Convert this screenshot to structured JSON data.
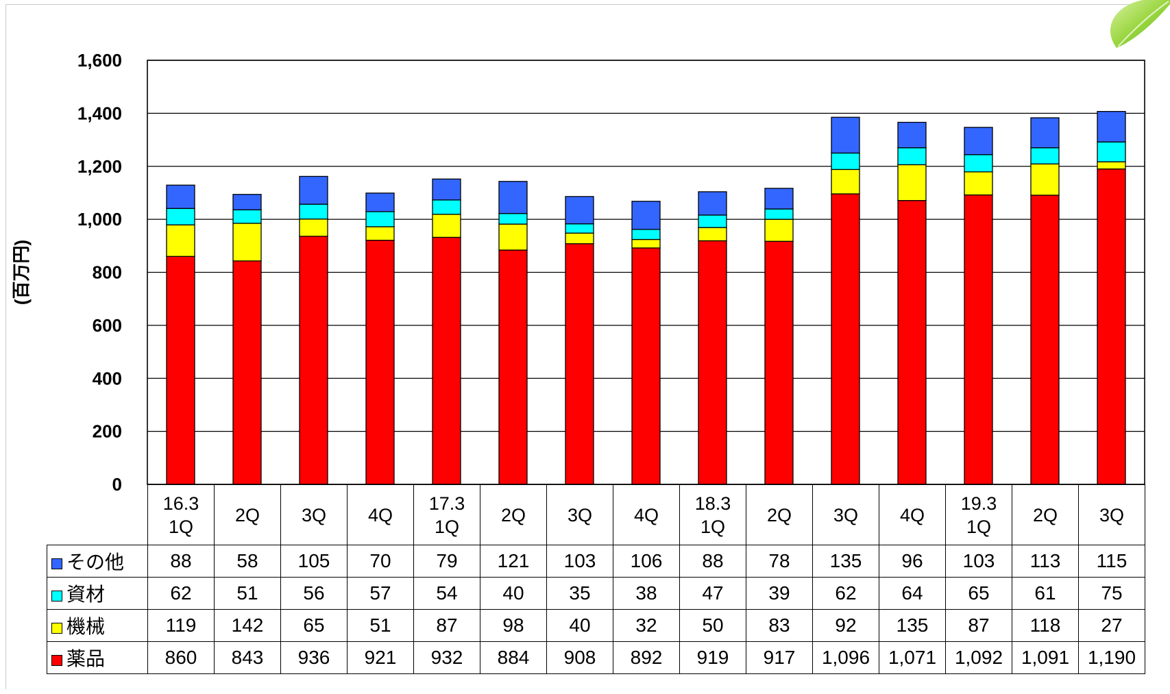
{
  "chart_data": {
    "type": "bar",
    "stacked": true,
    "ylabel": "(百万円)",
    "ylim": [
      0,
      1600
    ],
    "yticks": [
      "0",
      "200",
      "400",
      "600",
      "800",
      "1,000",
      "1,200",
      "1,400",
      "1,600"
    ],
    "grid": true,
    "categories": [
      [
        "16.3",
        "1Q"
      ],
      [
        "2Q"
      ],
      [
        "3Q"
      ],
      [
        "4Q"
      ],
      [
        "17.3",
        "1Q"
      ],
      [
        "2Q"
      ],
      [
        "3Q"
      ],
      [
        "4Q"
      ],
      [
        "18.3",
        "1Q"
      ],
      [
        "2Q"
      ],
      [
        "3Q"
      ],
      [
        "4Q"
      ],
      [
        "19.3",
        "1Q"
      ],
      [
        "2Q"
      ],
      [
        "3Q"
      ]
    ],
    "series": [
      {
        "name": "薬品",
        "color": "#ff0000",
        "values": [
          860,
          843,
          936,
          921,
          932,
          884,
          908,
          892,
          919,
          917,
          1096,
          1071,
          1092,
          1091,
          1190
        ],
        "labels": [
          "860",
          "843",
          "936",
          "921",
          "932",
          "884",
          "908",
          "892",
          "919",
          "917",
          "1,096",
          "1,071",
          "1,092",
          "1,091",
          "1,190"
        ]
      },
      {
        "name": "機械",
        "color": "#ffff00",
        "values": [
          119,
          142,
          65,
          51,
          87,
          98,
          40,
          32,
          50,
          83,
          92,
          135,
          87,
          118,
          27
        ],
        "labels": [
          "119",
          "142",
          "65",
          "51",
          "87",
          "98",
          "40",
          "32",
          "50",
          "83",
          "92",
          "135",
          "87",
          "118",
          "27"
        ]
      },
      {
        "name": "資材",
        "color": "#00ffff",
        "values": [
          62,
          51,
          56,
          57,
          54,
          40,
          35,
          38,
          47,
          39,
          62,
          64,
          65,
          61,
          75
        ],
        "labels": [
          "62",
          "51",
          "56",
          "57",
          "54",
          "40",
          "35",
          "38",
          "47",
          "39",
          "62",
          "64",
          "65",
          "61",
          "75"
        ]
      },
      {
        "name": "その他",
        "color": "#3366ff",
        "values": [
          88,
          58,
          105,
          70,
          79,
          121,
          103,
          106,
          88,
          78,
          135,
          96,
          103,
          113,
          115
        ],
        "labels": [
          "88",
          "58",
          "105",
          "70",
          "79",
          "121",
          "103",
          "106",
          "88",
          "78",
          "135",
          "96",
          "103",
          "113",
          "115"
        ]
      }
    ],
    "table_row_order": [
      "その他",
      "資材",
      "機械",
      "薬品"
    ]
  }
}
